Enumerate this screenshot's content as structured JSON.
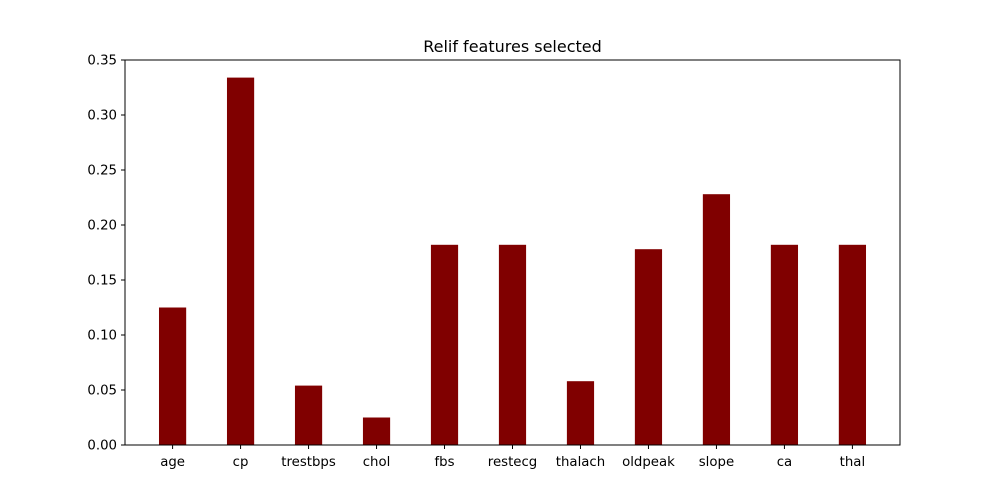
{
  "chart_data": {
    "type": "bar",
    "title": "Relif features selected",
    "xlabel": "",
    "ylabel": "",
    "categories": [
      "age",
      "cp",
      "trestbps",
      "chol",
      "fbs",
      "restecg",
      "thalach",
      "oldpeak",
      "slope",
      "ca",
      "thal"
    ],
    "values": [
      0.125,
      0.334,
      0.054,
      0.025,
      0.182,
      0.182,
      0.058,
      0.178,
      0.228,
      0.182,
      0.182
    ],
    "ylim": [
      0,
      0.35
    ],
    "yticks": [
      "0.00",
      "0.05",
      "0.10",
      "0.15",
      "0.20",
      "0.25",
      "0.30",
      "0.35"
    ],
    "bar_color": "#800000",
    "grid": false,
    "legend": "none"
  }
}
